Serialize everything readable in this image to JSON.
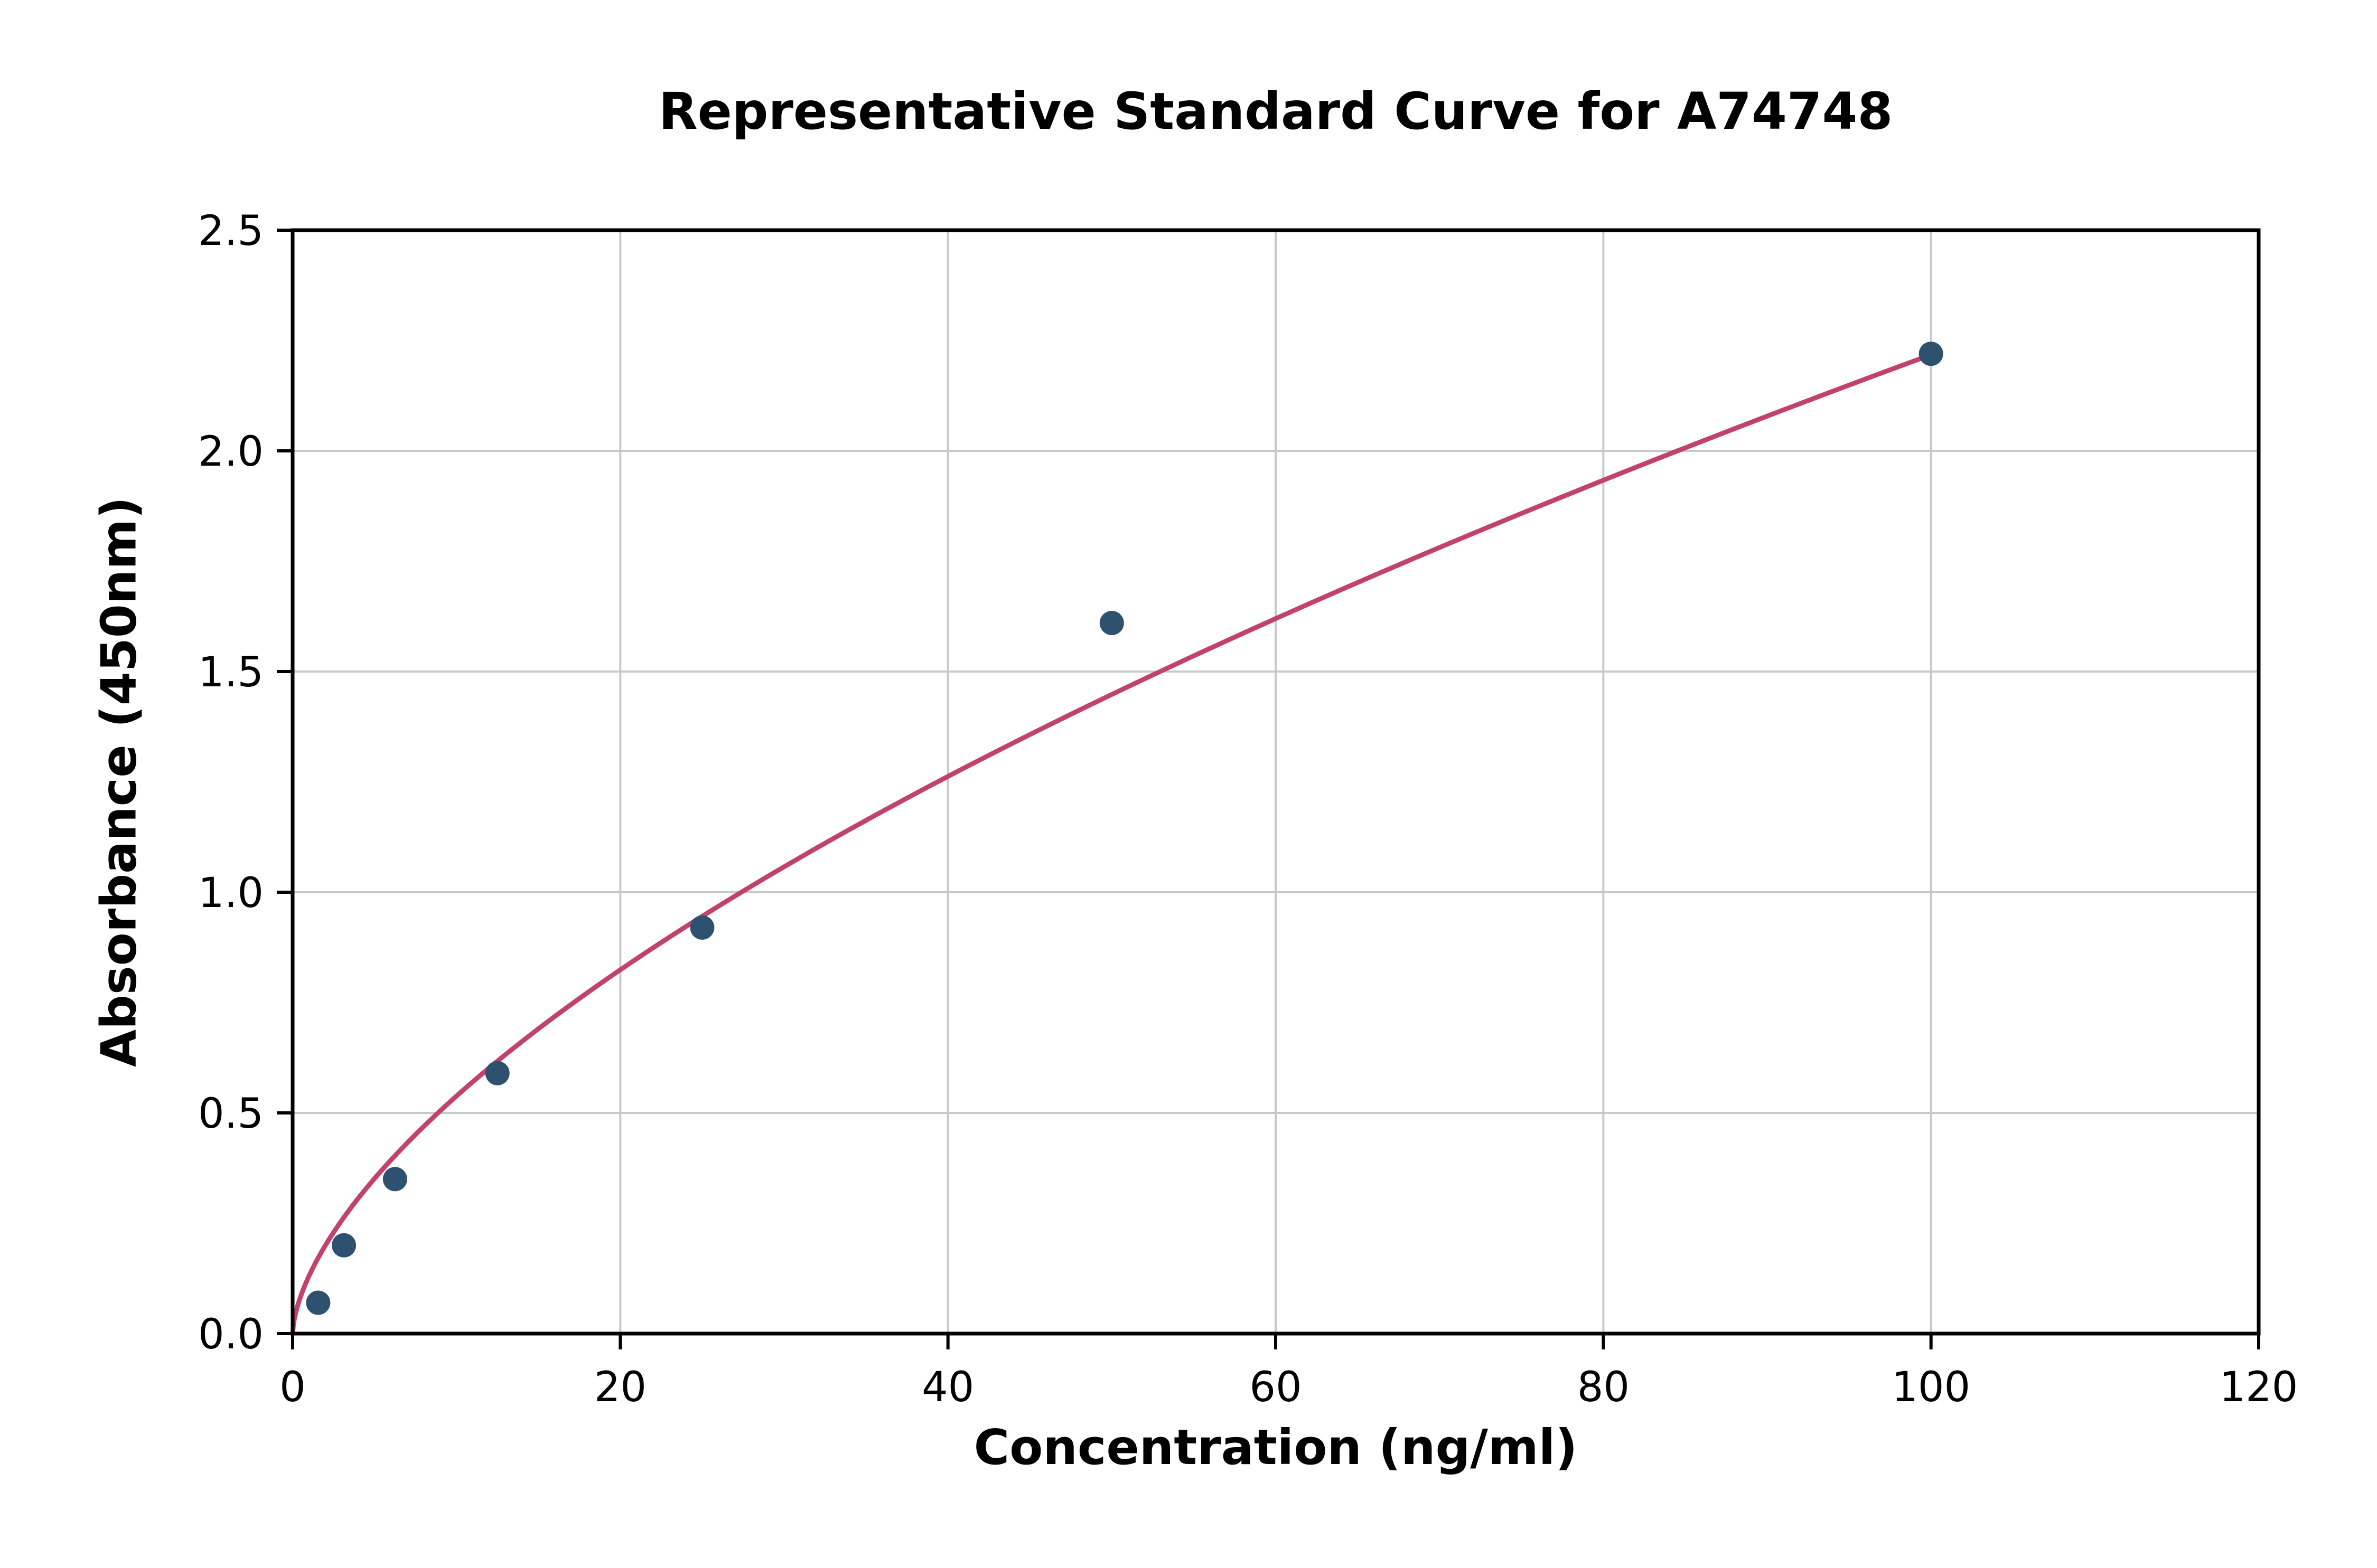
{
  "chart_data": {
    "type": "scatter",
    "title": "Representative Standard Curve for A74748",
    "xlabel": "Concentration (ng/ml)",
    "ylabel": "Absorbance (450nm)",
    "xlim": [
      0,
      120
    ],
    "ylim": [
      0,
      2.5
    ],
    "xticks": [
      0,
      20,
      40,
      60,
      80,
      100,
      120
    ],
    "xtick_labels": [
      "0",
      "20",
      "40",
      "60",
      "80",
      "100",
      "120"
    ],
    "yticks": [
      0.0,
      0.5,
      1.0,
      1.5,
      2.0,
      2.5
    ],
    "ytick_labels": [
      "0.0",
      "0.5",
      "1.0",
      "1.5",
      "2.0",
      "2.5"
    ],
    "grid": true,
    "legend_position": "none",
    "points": [
      {
        "x": 1.56,
        "y": 0.07
      },
      {
        "x": 3.13,
        "y": 0.2
      },
      {
        "x": 6.25,
        "y": 0.35
      },
      {
        "x": 12.5,
        "y": 0.59
      },
      {
        "x": 25,
        "y": 0.92
      },
      {
        "x": 50,
        "y": 1.61
      },
      {
        "x": 100,
        "y": 2.22
      }
    ],
    "fit_curve": {
      "type": "power",
      "a": 0.1306,
      "b": 0.615,
      "x_start": 0.05,
      "x_end": 100
    },
    "colors": {
      "point": "#2e5170",
      "curve": "#c2426e",
      "grid": "#c8c8c8",
      "axis": "#000000",
      "background": "#ffffff"
    }
  }
}
